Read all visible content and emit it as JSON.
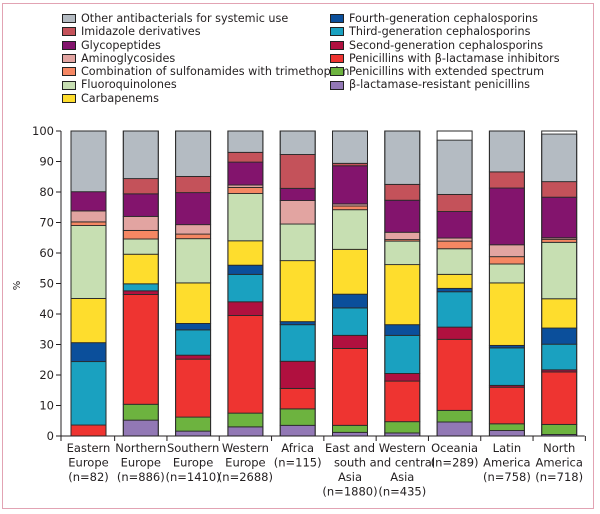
{
  "chart_data": {
    "type": "bar",
    "stacked": true,
    "title": "",
    "xlabel": "",
    "ylabel": "%",
    "ylim": [
      0,
      100
    ],
    "yticks": [
      0,
      10,
      20,
      30,
      40,
      50,
      60,
      70,
      80,
      90,
      100
    ],
    "grid": false,
    "legend_position": "top",
    "categories": [
      [
        "Eastern",
        "Europe",
        "(n=82)"
      ],
      [
        "Northern",
        "Europe",
        "(n=886)"
      ],
      [
        "Southern",
        "Europe",
        "(n=1410)"
      ],
      [
        "Western",
        "Europe",
        "(n=2688)"
      ],
      [
        "Africa",
        "(n=115)"
      ],
      [
        "East and",
        "south",
        "Asia",
        "(n=1880)"
      ],
      [
        "Western",
        "and central",
        "Asia",
        "(n=435)"
      ],
      [
        "Oceania",
        "(n=289)"
      ],
      [
        "Latin",
        "America",
        "(n=758)"
      ],
      [
        "North",
        "America",
        "(n=718)"
      ]
    ],
    "series": [
      {
        "name": "β-lactamase-resistant penicillins",
        "color": "#9278b5",
        "values": [
          0,
          5.2,
          1.6,
          3.0,
          3.5,
          1.2,
          1.0,
          4.6,
          1.8,
          0.5
        ]
      },
      {
        "name": "Penicillins with extended spectrum",
        "color": "#6db33f",
        "values": [
          0,
          5.2,
          4.6,
          4.5,
          5.4,
          2.3,
          3.7,
          3.8,
          2.2,
          3.3
        ]
      },
      {
        "name": "Penicillins with β-lactamase inhibitors",
        "color": "#ee3431",
        "values": [
          3.6,
          36.0,
          19.0,
          32.0,
          6.7,
          25.2,
          13.3,
          23.3,
          12.0,
          17.2
        ]
      },
      {
        "name": "Second-generation cephalosporins",
        "color": "#b0103f",
        "values": [
          0,
          1.2,
          1.3,
          4.5,
          8.9,
          4.3,
          2.5,
          4.0,
          0.6,
          0.7
        ]
      },
      {
        "name": "Third-generation cephalosporins",
        "color": "#1aa1c0",
        "values": [
          20.8,
          2.3,
          8.3,
          9.0,
          12.0,
          9.0,
          12.5,
          11.6,
          12.3,
          8.4
        ]
      },
      {
        "name": "Fourth-generation cephalosporins",
        "color": "#0b4f9b",
        "values": [
          6.2,
          0,
          2.1,
          3.0,
          1.0,
          4.5,
          3.5,
          1.1,
          0.8,
          5.3
        ]
      },
      {
        "name": "Carbapenems",
        "color": "#fedd2d",
        "values": [
          14.5,
          9.7,
          13.3,
          8.0,
          20.0,
          14.7,
          19.7,
          4.6,
          20.5,
          9.6
        ]
      },
      {
        "name": "Fluoroquinolones",
        "color": "#c7dfb2",
        "values": [
          23.9,
          5.0,
          14.5,
          15.5,
          12.0,
          13.0,
          7.7,
          8.4,
          6.2,
          18.5
        ]
      },
      {
        "name": "Combination of sulfonamides with trimethoprim",
        "color": "#f58763",
        "values": [
          1.2,
          2.8,
          1.5,
          2.0,
          0,
          1.2,
          0.5,
          2.5,
          2.4,
          1.0
        ]
      },
      {
        "name": "Aminoglycosides",
        "color": "#e2a4a1",
        "values": [
          3.6,
          4.6,
          3.1,
          0.8,
          7.7,
          0.7,
          2.4,
          1.0,
          3.9,
          0.5
        ]
      },
      {
        "name": "Glycopeptides",
        "color": "#83146d",
        "values": [
          6.3,
          7.4,
          10.5,
          7.5,
          4.0,
          12.5,
          10.5,
          8.7,
          18.6,
          13.3
        ]
      },
      {
        "name": "Imidazole derivatives",
        "color": "#c4525a",
        "values": [
          0,
          5.0,
          5.3,
          3.2,
          11.1,
          0.8,
          5.2,
          5.6,
          5.3,
          5.1
        ]
      },
      {
        "name": "Other antibacterials for systemic use",
        "color": "#b4bbc2",
        "values": [
          19.9,
          15.6,
          14.9,
          7.0,
          8.7,
          10.6,
          17.5,
          17.8,
          13.4,
          15.6
        ]
      }
    ]
  },
  "legend": {
    "left": [
      {
        "label": "Other antibacterials for systemic use",
        "color": "#b4bbc2"
      },
      {
        "label": "Imidazole derivatives",
        "color": "#c4525a"
      },
      {
        "label": "Glycopeptides",
        "color": "#83146d"
      },
      {
        "label": "Aminoglycosides",
        "color": "#e2a4a1"
      },
      {
        "label": "Combination of sulfonamides with trimethoprim",
        "color": "#f58763"
      },
      {
        "label": "Fluoroquinolones",
        "color": "#c7dfb2"
      },
      {
        "label": "Carbapenems",
        "color": "#fedd2d"
      }
    ],
    "right": [
      {
        "label": "Fourth-generation cephalosporins",
        "color": "#0b4f9b"
      },
      {
        "label": "Third-generation cephalosporins",
        "color": "#1aa1c0"
      },
      {
        "label": "Second-generation cephalosporins",
        "color": "#b0103f"
      },
      {
        "label": "Penicillins with β-lactamase inhibitors",
        "color": "#ee3431"
      },
      {
        "label": "Penicillins with extended spectrum",
        "color": "#6db33f"
      },
      {
        "label": "β-lactamase-resistant penicillins",
        "color": "#9278b5"
      }
    ]
  }
}
